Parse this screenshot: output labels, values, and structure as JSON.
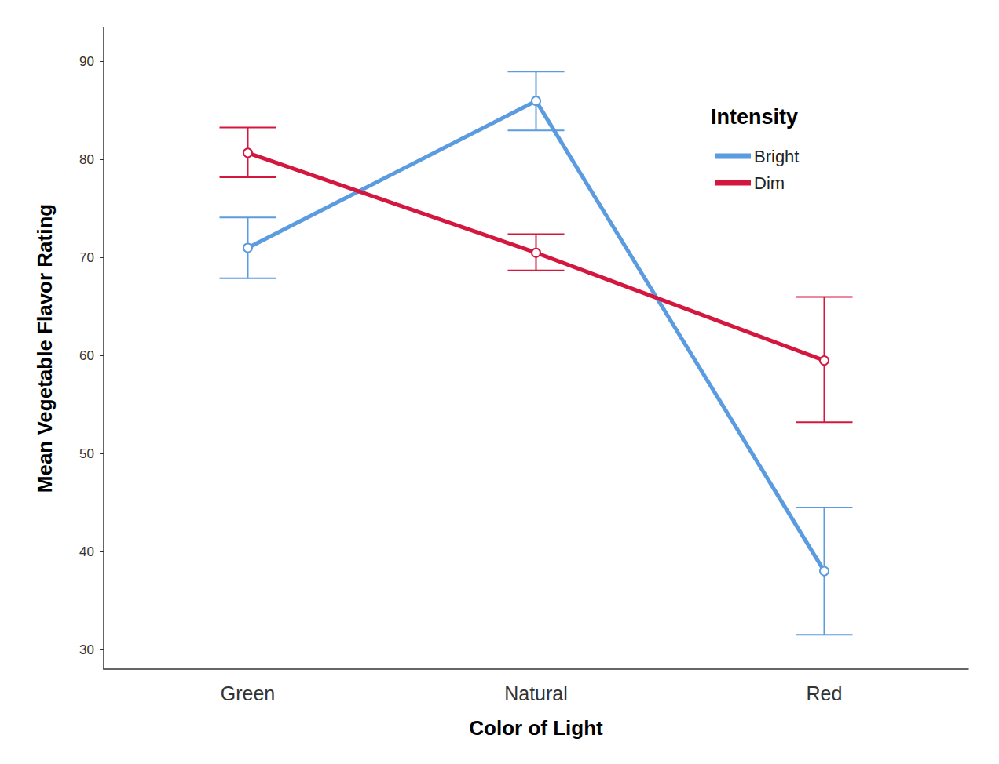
{
  "chart_data": {
    "type": "line",
    "x_label": "Color of Light",
    "y_label": "Mean Vegetable Flavor Rating",
    "legend_title": "Intensity",
    "categories": [
      "Green",
      "Natural",
      "Red"
    ],
    "series": [
      {
        "name": "Bright",
        "color": "#5b9bdf",
        "marker": "circle",
        "values": [
          71,
          86,
          38
        ],
        "error_low": [
          67.9,
          83,
          31.5
        ],
        "error_high": [
          74.1,
          89,
          44.5
        ]
      },
      {
        "name": "Dim",
        "color": "#d3173f",
        "marker": "circle",
        "values": [
          80.7,
          70.5,
          59.5
        ],
        "error_low": [
          78.2,
          68.7,
          53.2
        ],
        "error_high": [
          83.3,
          72.4,
          66
        ]
      }
    ],
    "ylim": [
      28,
      93.5
    ],
    "yticks": [
      30,
      40,
      50,
      60,
      70,
      80,
      90
    ],
    "grid": false,
    "legend": "upper right"
  }
}
